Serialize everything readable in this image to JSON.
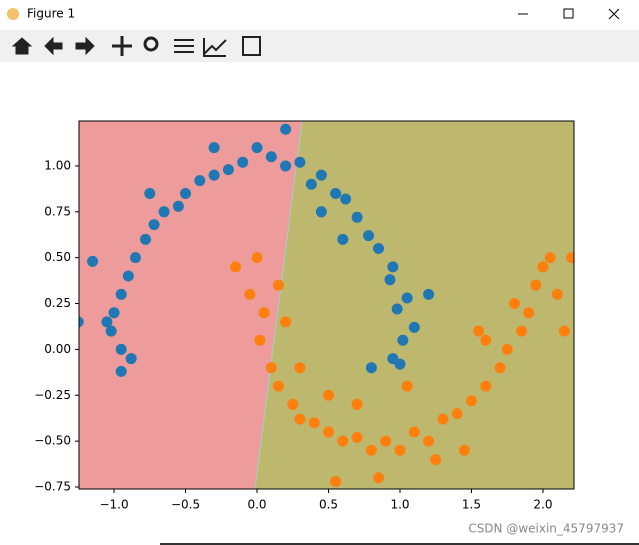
{
  "window": {
    "title": "Figure 1"
  },
  "watermark": "CSDN @weixin_45797937",
  "chart_data": {
    "type": "scatter",
    "xlim": [
      -1.245,
      2.217
    ],
    "ylim": [
      -0.761,
      1.245
    ],
    "xticks": [
      {
        "value": -1.0,
        "label": "−1.0"
      },
      {
        "value": -0.5,
        "label": "−0.5"
      },
      {
        "value": 0.0,
        "label": "0.0"
      },
      0.5,
      {
        "value": 1.0,
        "label": "1.0"
      },
      1.5,
      {
        "value": 2.0,
        "label": "2.0"
      }
    ],
    "yticks": [
      {
        "value": -0.75,
        "label": "−0.75"
      },
      {
        "value": -0.5,
        "label": "−0.50"
      },
      {
        "value": -0.25,
        "label": "−0.25"
      },
      {
        "value": 0.0,
        "label": "0.00"
      },
      {
        "value": 0.25,
        "label": "0.25"
      },
      {
        "value": 0.5,
        "label": "0.50"
      },
      {
        "value": 0.75,
        "label": "0.75"
      },
      {
        "value": 1.0,
        "label": "1.00"
      }
    ],
    "boundary": {
      "x": [
        -0.014,
        0.315
      ],
      "y": [
        -0.761,
        1.245
      ]
    },
    "region_colors": [
      "#ed9b9b",
      "#bdb86e"
    ],
    "series": [
      {
        "color": "#1f77b4",
        "x": [
          1.02,
          0.98,
          1.05,
          0.93,
          0.85,
          0.95,
          0.78,
          0.7,
          0.62,
          0.55,
          0.45,
          0.38,
          0.3,
          0.2,
          0.1,
          0.0,
          -0.1,
          -0.2,
          -0.3,
          -0.4,
          -0.5,
          -0.55,
          -0.65,
          -0.72,
          -0.78,
          -0.85,
          -0.9,
          -0.95,
          -1.0,
          -1.02,
          -0.95,
          -1.05,
          -1.15,
          -0.88,
          1.1,
          0.8,
          0.95,
          0.6,
          -0.3,
          0.2,
          -0.75,
          1.2,
          0.45,
          -1.25,
          -0.95,
          1.0
        ],
        "y": [
          0.05,
          0.22,
          0.28,
          0.38,
          0.55,
          0.45,
          0.62,
          0.72,
          0.82,
          0.85,
          0.95,
          0.9,
          1.02,
          1.0,
          1.05,
          1.1,
          1.02,
          0.98,
          0.95,
          0.92,
          0.85,
          0.78,
          0.75,
          0.68,
          0.6,
          0.5,
          0.4,
          0.3,
          0.2,
          0.1,
          0.0,
          0.15,
          0.48,
          -0.05,
          0.12,
          -0.1,
          -0.05,
          0.6,
          1.1,
          1.2,
          0.85,
          0.3,
          0.75,
          0.15,
          -0.12,
          -0.08
        ]
      },
      {
        "color": "#ff7f0e",
        "x": [
          0.0,
          -0.05,
          0.05,
          0.02,
          0.1,
          0.15,
          0.25,
          0.3,
          0.4,
          0.5,
          0.6,
          0.7,
          0.8,
          0.9,
          1.0,
          1.1,
          1.2,
          1.3,
          1.4,
          1.5,
          1.6,
          1.7,
          1.75,
          1.85,
          1.9,
          1.95,
          2.0,
          2.05,
          2.1,
          1.8,
          1.6,
          0.3,
          0.5,
          0.85,
          1.25,
          1.45,
          2.15,
          -0.15,
          0.15,
          0.7,
          1.05,
          2.2,
          0.55,
          1.55,
          0.2
        ],
        "y": [
          0.5,
          0.3,
          0.2,
          0.05,
          -0.1,
          -0.2,
          -0.3,
          -0.38,
          -0.4,
          -0.45,
          -0.5,
          -0.48,
          -0.55,
          -0.5,
          -0.55,
          -0.45,
          -0.5,
          -0.38,
          -0.35,
          -0.28,
          -0.2,
          -0.1,
          0.0,
          0.1,
          0.2,
          0.35,
          0.45,
          0.5,
          0.3,
          0.25,
          0.05,
          -0.1,
          -0.25,
          -0.7,
          -0.6,
          -0.55,
          0.1,
          0.45,
          0.35,
          -0.3,
          -0.2,
          0.5,
          -0.72,
          0.1,
          0.15
        ]
      }
    ]
  }
}
